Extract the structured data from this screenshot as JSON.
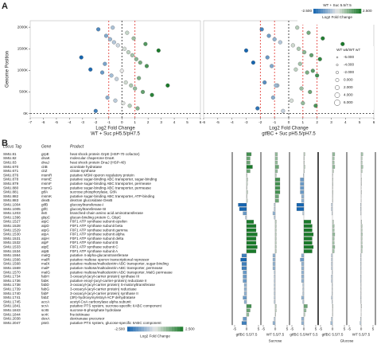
{
  "panel_labels": [
    "A",
    "B"
  ],
  "chart_data": [
    {
      "type": "scatter",
      "y_label": "Genome Position",
      "x_label": "Log2 Fold Change",
      "x_sublabel": "WT + Suc pH5.5/pH7.5",
      "xlim": [
        -7,
        6
      ],
      "xticks": [
        -7,
        -6,
        -5,
        -4,
        -3,
        -2,
        -1,
        0,
        1,
        2,
        3,
        4,
        5,
        6
      ],
      "ylim": [
        -100,
        2150
      ],
      "yticks": [
        {
          "value": 0,
          "label": "0K"
        },
        {
          "value": 500,
          "label": "500K"
        },
        {
          "value": 1000,
          "label": "1000K"
        },
        {
          "value": 1500,
          "label": "1500K"
        },
        {
          "value": 2000,
          "label": "2000K"
        }
      ],
      "x_thresholds": [
        -1,
        1
      ],
      "threshold_color": "#e0302a",
      "series": [
        {
          "x": [
            -1.8,
            -1.2,
            -0.9,
            -0.6,
            -0.3,
            0.2,
            0.5,
            0.8,
            1.1,
            1.4,
            1.9,
            -2.4,
            -1.5,
            -0.8,
            -0.4,
            0.3,
            0.7,
            1.0,
            1.6,
            2.3,
            -1.1,
            -0.5,
            0.1,
            0.6,
            1.2,
            -2.0,
            -0.7,
            0.4,
            0.9,
            1.8,
            2.8,
            -3.1,
            -1.3,
            0.0,
            1.3,
            3.5
          ],
          "y": [
            1950,
            1800,
            1720,
            1650,
            1580,
            1500,
            1420,
            1350,
            1260,
            1180,
            1100,
            1020,
            950,
            880,
            800,
            720,
            650,
            580,
            500,
            430,
            370,
            300,
            240,
            180,
            120,
            60,
            1990,
            1870,
            1740,
            1610,
            1460,
            1300,
            1150,
            990,
            820,
            650
          ]
        }
      ]
    },
    {
      "type": "scatter",
      "x_label": "Log2 Fold Change",
      "x_sublabel": "gtfBC + Suc pH5.5/pH7.5",
      "xlim": [
        -6,
        6
      ],
      "xticks": [
        -6,
        -5,
        -4,
        -3,
        -2,
        -1,
        0,
        1,
        2,
        3,
        4,
        5,
        6
      ],
      "ylim": [
        -100,
        2150
      ],
      "x_thresholds": [
        -2,
        -1,
        1,
        2
      ],
      "threshold_color": "#e0302a",
      "series": [
        {
          "x": [
            -1.9,
            -1.4,
            -1.0,
            -0.6,
            0.3,
            0.7,
            1.1,
            1.6,
            2.2,
            -2.5,
            -1.2,
            0.5,
            1.3,
            2.0,
            2.6,
            -1.7,
            -0.8,
            0.9,
            1.5,
            3.0,
            -1.1,
            0.2,
            1.0,
            1.9,
            -2.2,
            -0.4,
            0.6,
            1.4,
            2.4,
            3.8,
            -3.0,
            -1.5,
            0.8,
            1.7,
            4.5,
            -0.9
          ],
          "y": [
            1950,
            1800,
            1720,
            1650,
            1580,
            1500,
            1420,
            1350,
            1260,
            1180,
            1100,
            1020,
            950,
            880,
            800,
            720,
            650,
            580,
            500,
            430,
            370,
            300,
            240,
            180,
            120,
            60,
            1990,
            1870,
            1740,
            1610,
            1460,
            1300,
            1150,
            990,
            820,
            650
          ]
        }
      ],
      "legend": {
        "colorbar_title": "WT + Suc 5.5/7.5",
        "colorbar_min": {
          "value": -2.5,
          "label": "-2.500"
        },
        "colorbar_max": {
          "value": 2.5,
          "label": "2.500"
        },
        "colorbar_label": "Log2 Fold Change",
        "colors": [
          "#1565b0",
          "#e6e6e6",
          "#1a7a2a"
        ],
        "size_title": "WT w5/WT w7",
        "sizes": [
          {
            "value": -5,
            "label": "-5.000"
          },
          {
            "value": -4,
            "label": "-4.000"
          },
          {
            "value": -2,
            "label": "-2.000"
          },
          {
            "value": 0,
            "label": "0.000"
          },
          {
            "value": 2,
            "label": "2.000"
          },
          {
            "value": 4,
            "label": "4.000"
          },
          {
            "value": 6,
            "label": "6.000"
          }
        ]
      }
    },
    {
      "type": "hbar",
      "xlim": [
        -6,
        6
      ],
      "xticks": [
        -5,
        0,
        5
      ],
      "colorbar_min": {
        "value": -2.5,
        "label": "-2.500"
      },
      "colorbar_max": {
        "value": 2.5,
        "label": "2.500"
      },
      "colorbar_label": "Log2 Fold Change",
      "colors": [
        "#1565b0",
        "#e6e6e6",
        "#1a7a2a"
      ],
      "series": [
        {
          "name": "gtfBC 5.5/7.5",
          "group": "Sucrose",
          "values": [
            2,
            1.5,
            1.5,
            2.5,
            1.5,
            0.3,
            0.5,
            0.4,
            0.3,
            0.5,
            0.3,
            0.4,
            -3.5,
            -3,
            -1.5,
            -0.5,
            3,
            4,
            4,
            4.5,
            4,
            4,
            4.5,
            4,
            -2,
            -2.5,
            -2,
            -2,
            -1.5,
            -1.5,
            -1.5,
            -1,
            -1,
            -1,
            -1.5,
            -1,
            2,
            1.5,
            1,
            -1.5,
            -2
          ]
        },
        {
          "name": "WT 5.5/7.5",
          "group": "Sucrose",
          "values": [
            1,
            1,
            1,
            1.5,
            1,
            0.5,
            2,
            2,
            2,
            2,
            1.5,
            1.5,
            -0.5,
            -0.5,
            -1,
            -0.5,
            0.5,
            0.5,
            0.5,
            0.5,
            0.5,
            0.5,
            0.5,
            0.5,
            -1,
            -1,
            -1,
            -1,
            -0.5,
            -0.5,
            -0.5,
            -0.5,
            -0.5,
            -0.5,
            -0.5,
            -0.5,
            0.5,
            0.5,
            0.3,
            -0.5,
            -1
          ]
        },
        {
          "name": "gtfBC 5.5/WT 5.5",
          "group": "Sucrose",
          "values": [
            0.5,
            0.3,
            0.3,
            0.5,
            0.3,
            -0.3,
            -1.5,
            -1.5,
            -1.5,
            -1.5,
            -1,
            -1,
            -3,
            -3,
            -0.5,
            0,
            3,
            3.5,
            3.5,
            4,
            3.5,
            3.5,
            4,
            3.5,
            -1,
            -1.5,
            -1,
            -1,
            -1,
            -1,
            -1,
            -0.5,
            -0.5,
            -0.5,
            -1,
            -0.5,
            1.5,
            1,
            0.5,
            -1,
            -1
          ]
        },
        {
          "name": "gtfBC 5.5/7.5",
          "group": "Glucose",
          "values": [
            1,
            0.8,
            0.8,
            1,
            0.5,
            0.2,
            0.3,
            0.3,
            0.2,
            0.3,
            0.2,
            0.2,
            -0.5,
            -0.5,
            -0.3,
            0,
            0.5,
            0.8,
            0.8,
            1,
            0.8,
            0.8,
            1,
            0.8,
            -0.5,
            -0.5,
            -0.5,
            -0.5,
            -0.3,
            -0.5,
            -0.5,
            -0.3,
            -0.3,
            -0.3,
            -0.5,
            -0.3,
            0.3,
            0.2,
            0.2,
            -0.5,
            -0.8
          ]
        },
        {
          "name": "WT 5.5/7.5",
          "group": "Glucose",
          "values": [
            0.8,
            0.5,
            0.5,
            0.8,
            0.5,
            0.1,
            0.2,
            0.2,
            0.1,
            0.2,
            0.1,
            0.1,
            -0.3,
            -0.3,
            -0.2,
            0,
            0.3,
            0.5,
            0.5,
            0.6,
            0.5,
            0.5,
            0.6,
            0.5,
            -0.3,
            -0.3,
            -0.3,
            -0.3,
            -0.2,
            -0.3,
            -0.3,
            -0.2,
            -0.2,
            -0.2,
            -0.3,
            -0.2,
            0.2,
            0.1,
            0.1,
            -0.3,
            -0.5
          ]
        }
      ]
    }
  ],
  "table": {
    "headers": [
      "Locus Tag",
      "Gene",
      "Product"
    ],
    "rows": [
      [
        "SMU.81",
        "grpE",
        "heat shock protein GrpE (HSP-70 cofactor)"
      ],
      [
        "SMU.82",
        "dnaK",
        "molecular chaperone DnaK"
      ],
      [
        "SMU.83",
        "dnaJ",
        "heat shock protein DnaJ (HSP-40)"
      ],
      [
        "SMU.670",
        "citB",
        "aconitate hydratase"
      ],
      [
        "SMU.671",
        "citZ",
        "citrate synthase"
      ],
      [
        "SMU.876",
        "msmR",
        "putative MSM operon regulatory protein"
      ],
      [
        "SMU.878",
        "msmE",
        "putative sugar-binding ABC transporter, sugar-binding"
      ],
      [
        "SMU.879",
        "msmF",
        "putative sugar-binding ABC transporter, permease"
      ],
      [
        "SMU.880",
        "msmG",
        "putative sugar-binding ABC transporter, permease"
      ],
      [
        "SMU.881",
        "gtfA",
        "sucrose phosphorylase, GtfA"
      ],
      [
        "SMU.882",
        "msmK",
        "putative sugar-binding ABC transporter, ATP-binding"
      ],
      [
        "SMU.883",
        "dexB",
        "dextran glucosidase DexB"
      ],
      [
        "SMU.1004",
        "gtfB",
        "glucosyltransferase-I"
      ],
      [
        "SMU.1005",
        "gtfC",
        "glucosyltransferase-SI"
      ],
      [
        "SMU.1203",
        "ilvE",
        "branched-chain amino acid aminotransferase"
      ],
      [
        "SMU.1396",
        "gbpC",
        "glucan-binding protein C, GbpC"
      ],
      [
        "SMU.1527",
        "atpC",
        "F0F1 ATP synthase subunit epsilon"
      ],
      [
        "SMU.1528",
        "atpD",
        "F0F1 ATP synthase subunit beta"
      ],
      [
        "SMU.1529",
        "atpG",
        "F0F1 ATP synthase subunit gamma"
      ],
      [
        "SMU.1530",
        "atpA",
        "F0F1 ATP synthase subunit alpha"
      ],
      [
        "SMU.1531",
        "atpH",
        "F0F1 ATP synthase subunit delta"
      ],
      [
        "SMU.1532",
        "atpF",
        "F0F1 ATP synthase subunit B"
      ],
      [
        "SMU.1533",
        "atpE",
        "F0F1 ATP synthase subunit C"
      ],
      [
        "SMU.1534",
        "atpB",
        "F0F1 ATP synthase subunit A"
      ],
      [
        "SMU.1564",
        "malQ",
        "putative 4-alpha-glucanotransferase"
      ],
      [
        "SMU.1566",
        "malR",
        "putative maltose operon transcriptional repressor"
      ],
      [
        "SMU.1568",
        "malX",
        "putative maltose/maltodextrin ABC transporter, sugar-binding"
      ],
      [
        "SMU.1569",
        "malF",
        "putative maltose/maltodextrin ABC transporter, permease"
      ],
      [
        "SMU.1570",
        "malG",
        "putative maltose/maltodextrin ABC transporter, MalG permease"
      ],
      [
        "SMU.1734",
        "fabH",
        "3-oxoacyl-(acyl-carrier protein) synthase III"
      ],
      [
        "SMU.1736",
        "fabK",
        "putative enoyl-(acyl-carrier-protein) reductase II"
      ],
      [
        "SMU.1738",
        "fabD",
        "3-oxoacyl-(acyl-carrier protein) S-malonyltransferase"
      ],
      [
        "SMU.1739",
        "fabG",
        "3-oxoacyl-(acyl-carrier protein) reductase"
      ],
      [
        "SMU.1740",
        "fabF",
        "3-oxoacyl-(acyl-carrier protein) synthase II"
      ],
      [
        "SMU.1741",
        "fabZ",
        "(3R)-hydroxymyristoyl-ACP dehydratase"
      ],
      [
        "SMU.1745",
        "accA",
        "acetyl-CoA carboxylase alpha subunit"
      ],
      [
        "SMU.1841",
        "scrA",
        "putative PTS system, sucrose-specific IIABC component"
      ],
      [
        "SMU.1843",
        "scrB",
        "sucrose-6-phosphate hydrolase"
      ],
      [
        "SMU.1844",
        "scrK",
        "fructokinase"
      ],
      [
        "SMU.2038",
        "dexA",
        "dextranase precursor"
      ],
      [
        "SMU.2047",
        "ptsG",
        "putative PTS system, glucose-specific IIABC component"
      ]
    ]
  }
}
